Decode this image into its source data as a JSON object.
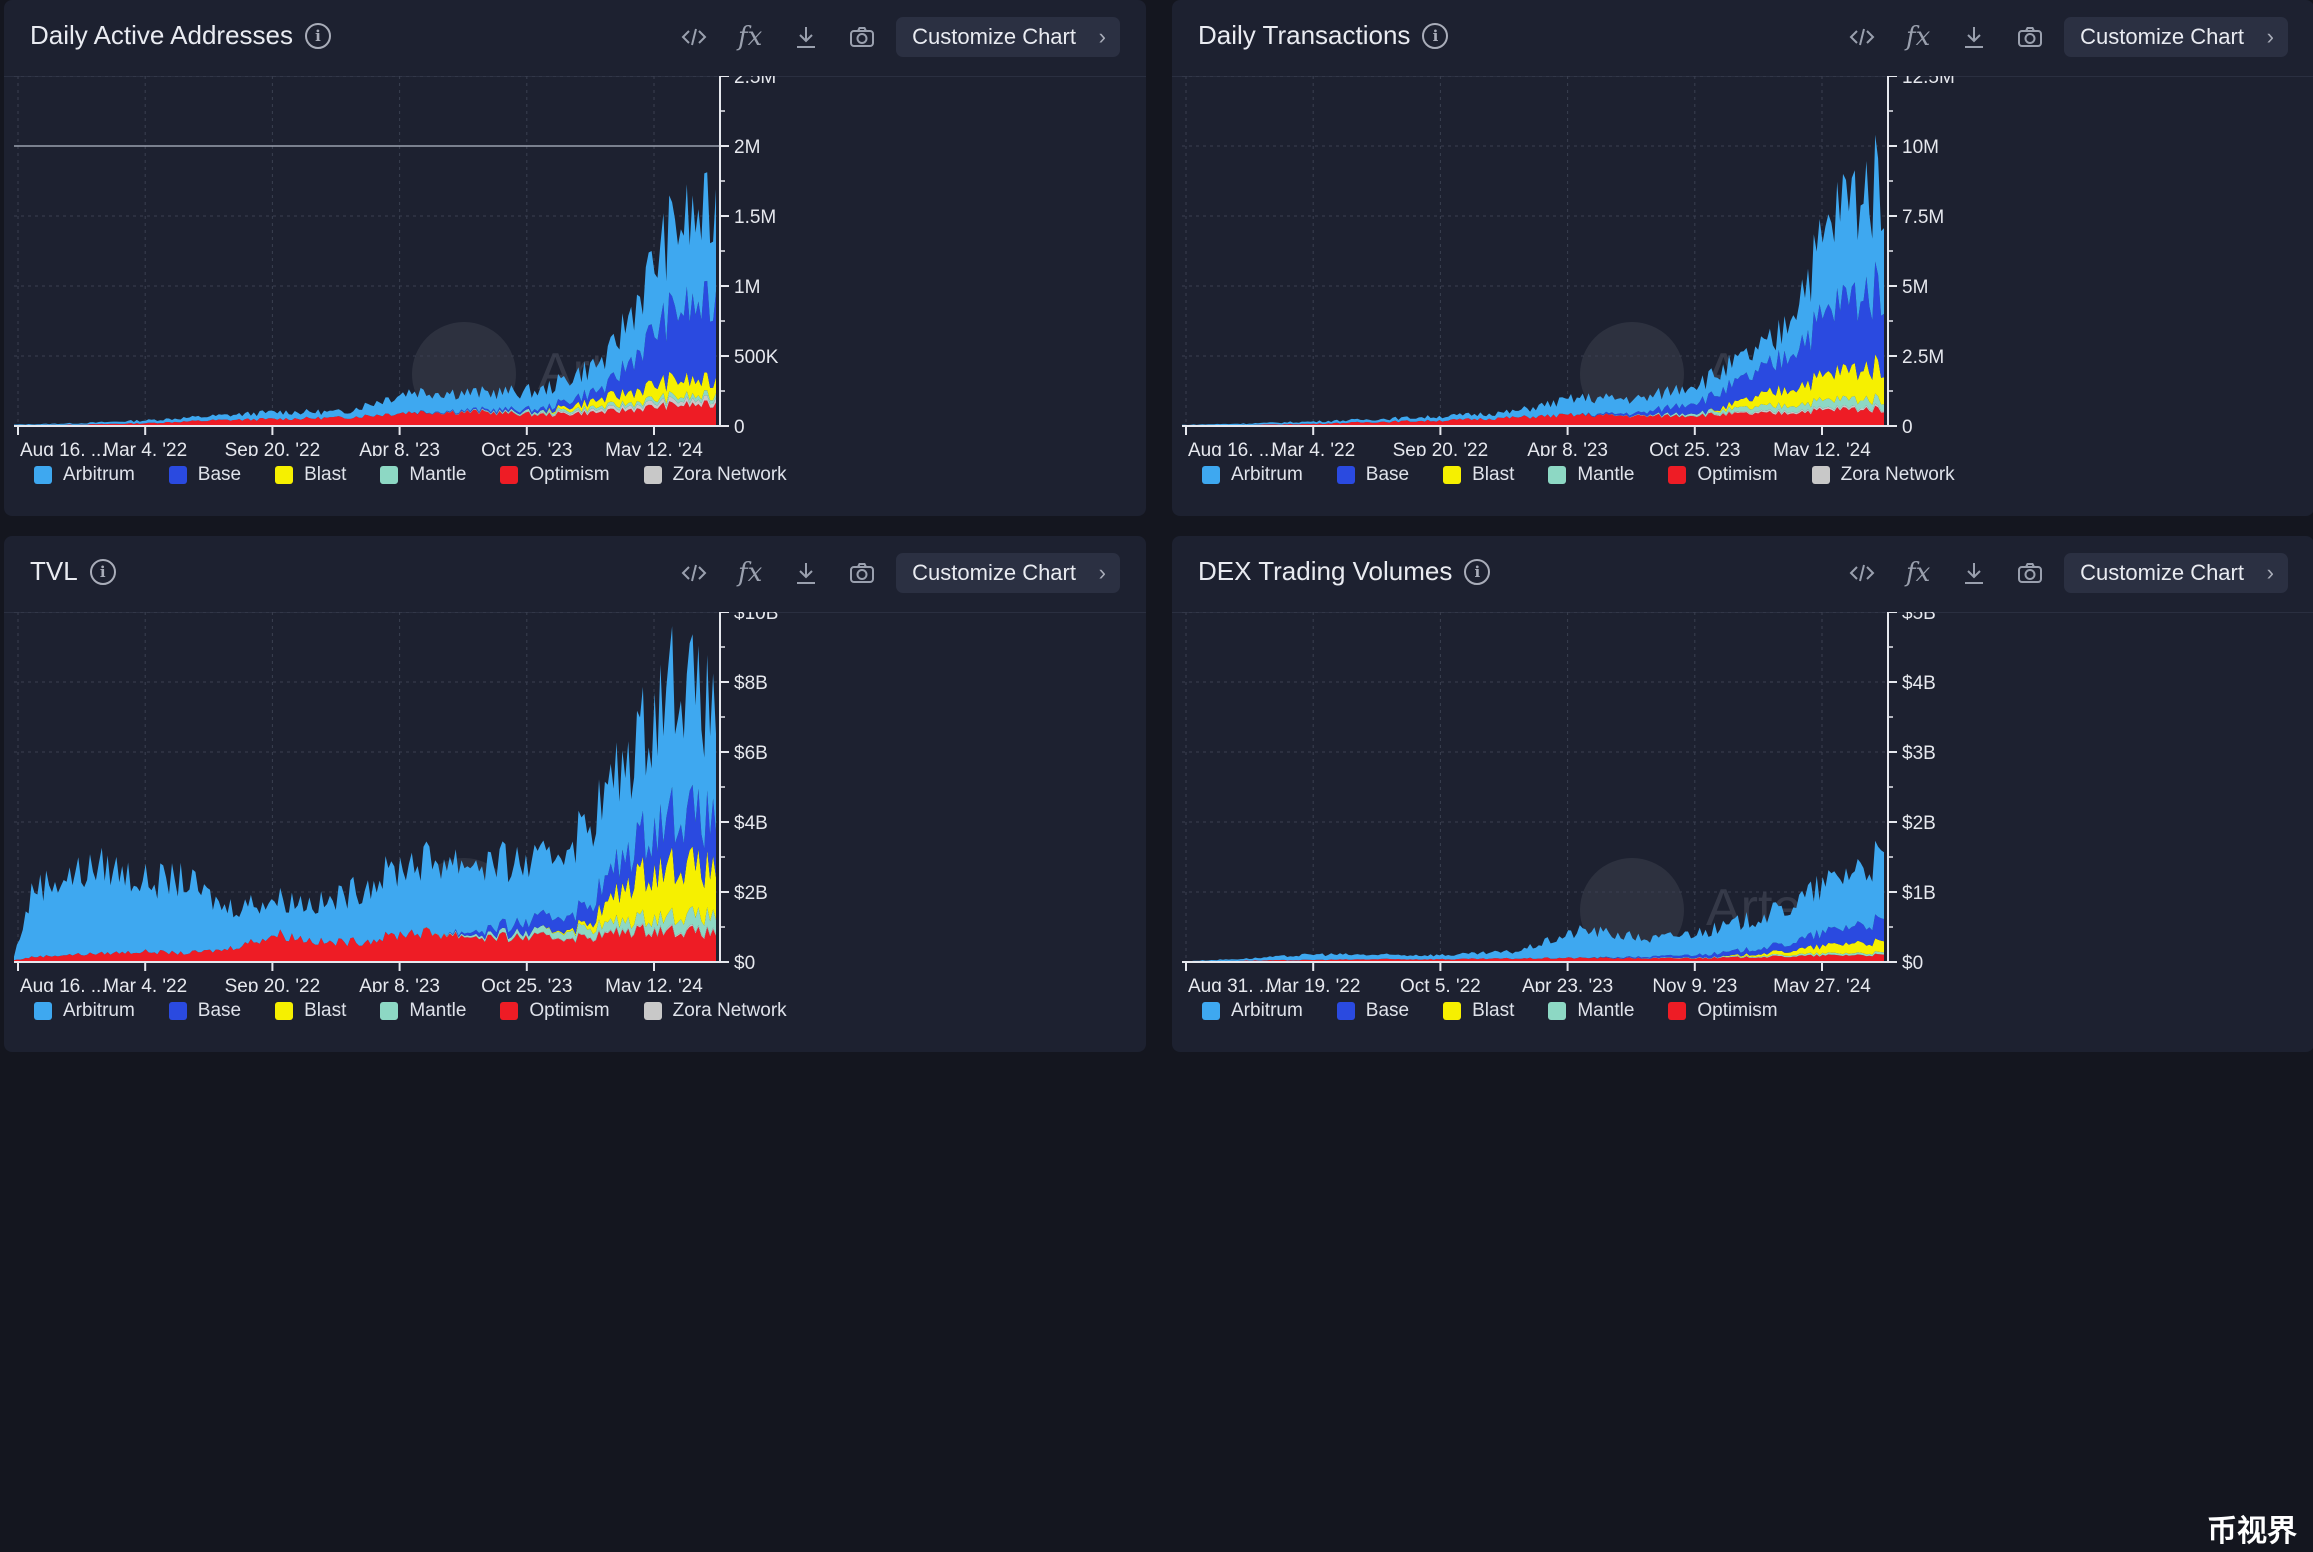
{
  "watermark": "Artemis",
  "corner_badge": "币视界",
  "colors": {
    "Arbitrum": "#3ea8f0",
    "Base": "#2a4ae0",
    "Blast": "#f6f000",
    "Mantle": "#8dd8c4",
    "Optimism": "#ee1c25",
    "Zora Network": "#c8c8c8"
  },
  "panels": [
    {
      "title": "Daily Active Addresses",
      "customize_label": "Customize Chart",
      "legend": [
        "Arbitrum",
        "Base",
        "Blast",
        "Mantle",
        "Optimism",
        "Zora Network"
      ]
    },
    {
      "title": "Daily Transactions",
      "customize_label": "Customize Chart",
      "legend": [
        "Arbitrum",
        "Base",
        "Blast",
        "Mantle",
        "Optimism",
        "Zora Network"
      ]
    },
    {
      "title": "TVL",
      "customize_label": "Customize Chart",
      "legend": [
        "Arbitrum",
        "Base",
        "Blast",
        "Mantle",
        "Optimism",
        "Zora Network"
      ]
    },
    {
      "title": "DEX Trading Volumes",
      "customize_label": "Customize Chart",
      "legend": [
        "Arbitrum",
        "Base",
        "Blast",
        "Mantle",
        "Optimism"
      ]
    }
  ],
  "chart_data": [
    {
      "type": "area",
      "title": "Daily Active Addresses",
      "stacked": true,
      "x_ticks": [
        "Aug 16, ...",
        "Mar 4, '22",
        "Sep 20, '22",
        "Apr 8, '23",
        "Oct 25, '23",
        "May 12, '24"
      ],
      "y_ticks": [
        "0",
        "500K",
        "1M",
        "1.5M",
        "2M",
        "2.5M"
      ],
      "ylim": [
        0,
        2500000
      ],
      "reference_line": 2000000,
      "x": [
        "2021-08-16",
        "2021-11-24",
        "2022-03-04",
        "2022-06-12",
        "2022-09-20",
        "2022-12-29",
        "2023-04-08",
        "2023-07-17",
        "2023-10-25",
        "2024-02-02",
        "2024-05-12",
        "2024-07-15"
      ],
      "series": [
        {
          "name": "Optimism",
          "values": [
            5000,
            10000,
            20000,
            40000,
            50000,
            60000,
            100000,
            100000,
            80000,
            100000,
            150000,
            150000
          ]
        },
        {
          "name": "Zora Network",
          "values": [
            0,
            0,
            0,
            0,
            0,
            0,
            0,
            0,
            5000,
            20000,
            30000,
            30000
          ]
        },
        {
          "name": "Mantle",
          "values": [
            0,
            0,
            0,
            0,
            0,
            0,
            0,
            5000,
            15000,
            20000,
            30000,
            30000
          ]
        },
        {
          "name": "Blast",
          "values": [
            0,
            0,
            0,
            0,
            0,
            0,
            0,
            0,
            0,
            60000,
            120000,
            100000
          ]
        },
        {
          "name": "Base",
          "values": [
            0,
            0,
            0,
            0,
            0,
            0,
            0,
            10000,
            20000,
            80000,
            500000,
            550000
          ]
        },
        {
          "name": "Arbitrum",
          "values": [
            5000,
            10000,
            20000,
            30000,
            50000,
            40000,
            150000,
            120000,
            130000,
            200000,
            600000,
            650000
          ]
        }
      ]
    },
    {
      "type": "area",
      "title": "Daily Transactions",
      "stacked": true,
      "x_ticks": [
        "Aug 16, ...",
        "Mar 4, '22",
        "Sep 20, '22",
        "Apr 8, '23",
        "Oct 25, '23",
        "May 12, '24"
      ],
      "y_ticks": [
        "0",
        "2.5M",
        "5M",
        "7.5M",
        "10M",
        "12.5M"
      ],
      "ylim": [
        0,
        12500000
      ],
      "x": [
        "2021-08-16",
        "2021-11-24",
        "2022-03-04",
        "2022-06-12",
        "2022-09-20",
        "2022-12-29",
        "2023-04-08",
        "2023-07-17",
        "2023-10-25",
        "2024-02-02",
        "2024-05-12",
        "2024-07-15"
      ],
      "series": [
        {
          "name": "Optimism",
          "values": [
            20000,
            40000,
            80000,
            150000,
            200000,
            300000,
            400000,
            350000,
            400000,
            450000,
            600000,
            600000
          ]
        },
        {
          "name": "Zora Network",
          "values": [
            0,
            0,
            0,
            0,
            0,
            0,
            0,
            0,
            20000,
            60000,
            60000,
            60000
          ]
        },
        {
          "name": "Mantle",
          "values": [
            0,
            0,
            0,
            0,
            0,
            0,
            0,
            20000,
            100000,
            200000,
            300000,
            300000
          ]
        },
        {
          "name": "Blast",
          "values": [
            0,
            0,
            0,
            0,
            0,
            0,
            0,
            0,
            0,
            500000,
            1000000,
            1200000
          ]
        },
        {
          "name": "Base",
          "values": [
            0,
            0,
            0,
            0,
            0,
            0,
            0,
            100000,
            500000,
            1000000,
            2500000,
            2800000
          ]
        },
        {
          "name": "Arbitrum",
          "values": [
            20000,
            50000,
            80000,
            100000,
            150000,
            200000,
            600000,
            500000,
            700000,
            800000,
            3500000,
            3800000
          ]
        }
      ]
    },
    {
      "type": "area",
      "title": "TVL",
      "stacked": true,
      "x_ticks": [
        "Aug 16, ...",
        "Mar 4, '22",
        "Sep 20, '22",
        "Apr 8, '23",
        "Oct 25, '23",
        "May 12, '24"
      ],
      "y_ticks": [
        "$0",
        "$2B",
        "$4B",
        "$6B",
        "$8B",
        "$10B"
      ],
      "ylim": [
        0,
        10000000000
      ],
      "x": [
        "2021-08-16",
        "2021-09-15",
        "2021-11-01",
        "2022-01-01",
        "2022-03-04",
        "2022-05-01",
        "2022-07-01",
        "2022-09-20",
        "2022-12-01",
        "2023-02-01",
        "2023-04-08",
        "2023-06-01",
        "2023-08-01",
        "2023-10-25",
        "2024-01-01",
        "2024-03-15",
        "2024-05-12",
        "2024-07-15"
      ],
      "series": [
        {
          "name": "Optimism",
          "values": [
            50000000,
            150000000,
            200000000,
            250000000,
            300000000,
            250000000,
            350000000,
            800000000,
            550000000,
            600000000,
            850000000,
            800000000,
            700000000,
            700000000,
            700000000,
            900000000,
            900000000,
            800000000
          ]
        },
        {
          "name": "Zora Network",
          "values": [
            0,
            0,
            0,
            0,
            0,
            0,
            0,
            0,
            0,
            0,
            0,
            0,
            0,
            10000000,
            20000000,
            30000000,
            40000000,
            40000000
          ]
        },
        {
          "name": "Mantle",
          "values": [
            0,
            0,
            0,
            0,
            0,
            0,
            0,
            0,
            0,
            0,
            0,
            20000000,
            80000000,
            150000000,
            250000000,
            300000000,
            400000000,
            450000000
          ]
        },
        {
          "name": "Blast",
          "values": [
            0,
            0,
            0,
            0,
            0,
            0,
            0,
            0,
            0,
            0,
            0,
            0,
            0,
            0,
            100000000,
            1200000000,
            1500000000,
            1300000000
          ]
        },
        {
          "name": "Base",
          "values": [
            0,
            0,
            0,
            0,
            0,
            0,
            0,
            0,
            0,
            0,
            0,
            0,
            150000000,
            350000000,
            500000000,
            1000000000,
            1500000000,
            1400000000
          ]
        },
        {
          "name": "Arbitrum",
          "values": [
            100000000,
            2000000000,
            2200000000,
            2500000000,
            2000000000,
            2100000000,
            1200000000,
            1000000000,
            1100000000,
            1600000000,
            2000000000,
            2100000000,
            1900000000,
            1600000000,
            2300000000,
            2700000000,
            4000000000,
            3000000000
          ]
        }
      ]
    },
    {
      "type": "area",
      "title": "DEX Trading Volumes",
      "stacked": true,
      "x_ticks": [
        "Aug 31, ...",
        "Mar 19, '22",
        "Oct 5, '22",
        "Apr 23, '23",
        "Nov 9, '23",
        "May 27, '24"
      ],
      "y_ticks": [
        "$0",
        "$1B",
        "$2B",
        "$3B",
        "$4B",
        "$5B"
      ],
      "ylim": [
        0,
        5000000000
      ],
      "x": [
        "2021-08-31",
        "2021-12-09",
        "2022-03-19",
        "2022-06-27",
        "2022-10-05",
        "2023-01-13",
        "2023-04-23",
        "2023-08-01",
        "2023-11-09",
        "2024-02-17",
        "2024-05-27",
        "2024-07-15"
      ],
      "series": [
        {
          "name": "Optimism",
          "values": [
            5000000,
            20000000,
            30000000,
            40000000,
            40000000,
            50000000,
            60000000,
            50000000,
            60000000,
            80000000,
            100000000,
            100000000
          ]
        },
        {
          "name": "Mantle",
          "values": [
            0,
            0,
            0,
            0,
            0,
            0,
            0,
            5000000,
            10000000,
            20000000,
            30000000,
            30000000
          ]
        },
        {
          "name": "Blast",
          "values": [
            0,
            0,
            0,
            0,
            0,
            0,
            0,
            0,
            0,
            50000000,
            150000000,
            150000000
          ]
        },
        {
          "name": "Base",
          "values": [
            0,
            0,
            0,
            0,
            0,
            0,
            0,
            20000000,
            50000000,
            100000000,
            250000000,
            300000000
          ]
        },
        {
          "name": "Arbitrum",
          "values": [
            5000000,
            30000000,
            80000000,
            60000000,
            60000000,
            100000000,
            400000000,
            250000000,
            350000000,
            500000000,
            800000000,
            900000000
          ]
        }
      ]
    }
  ]
}
